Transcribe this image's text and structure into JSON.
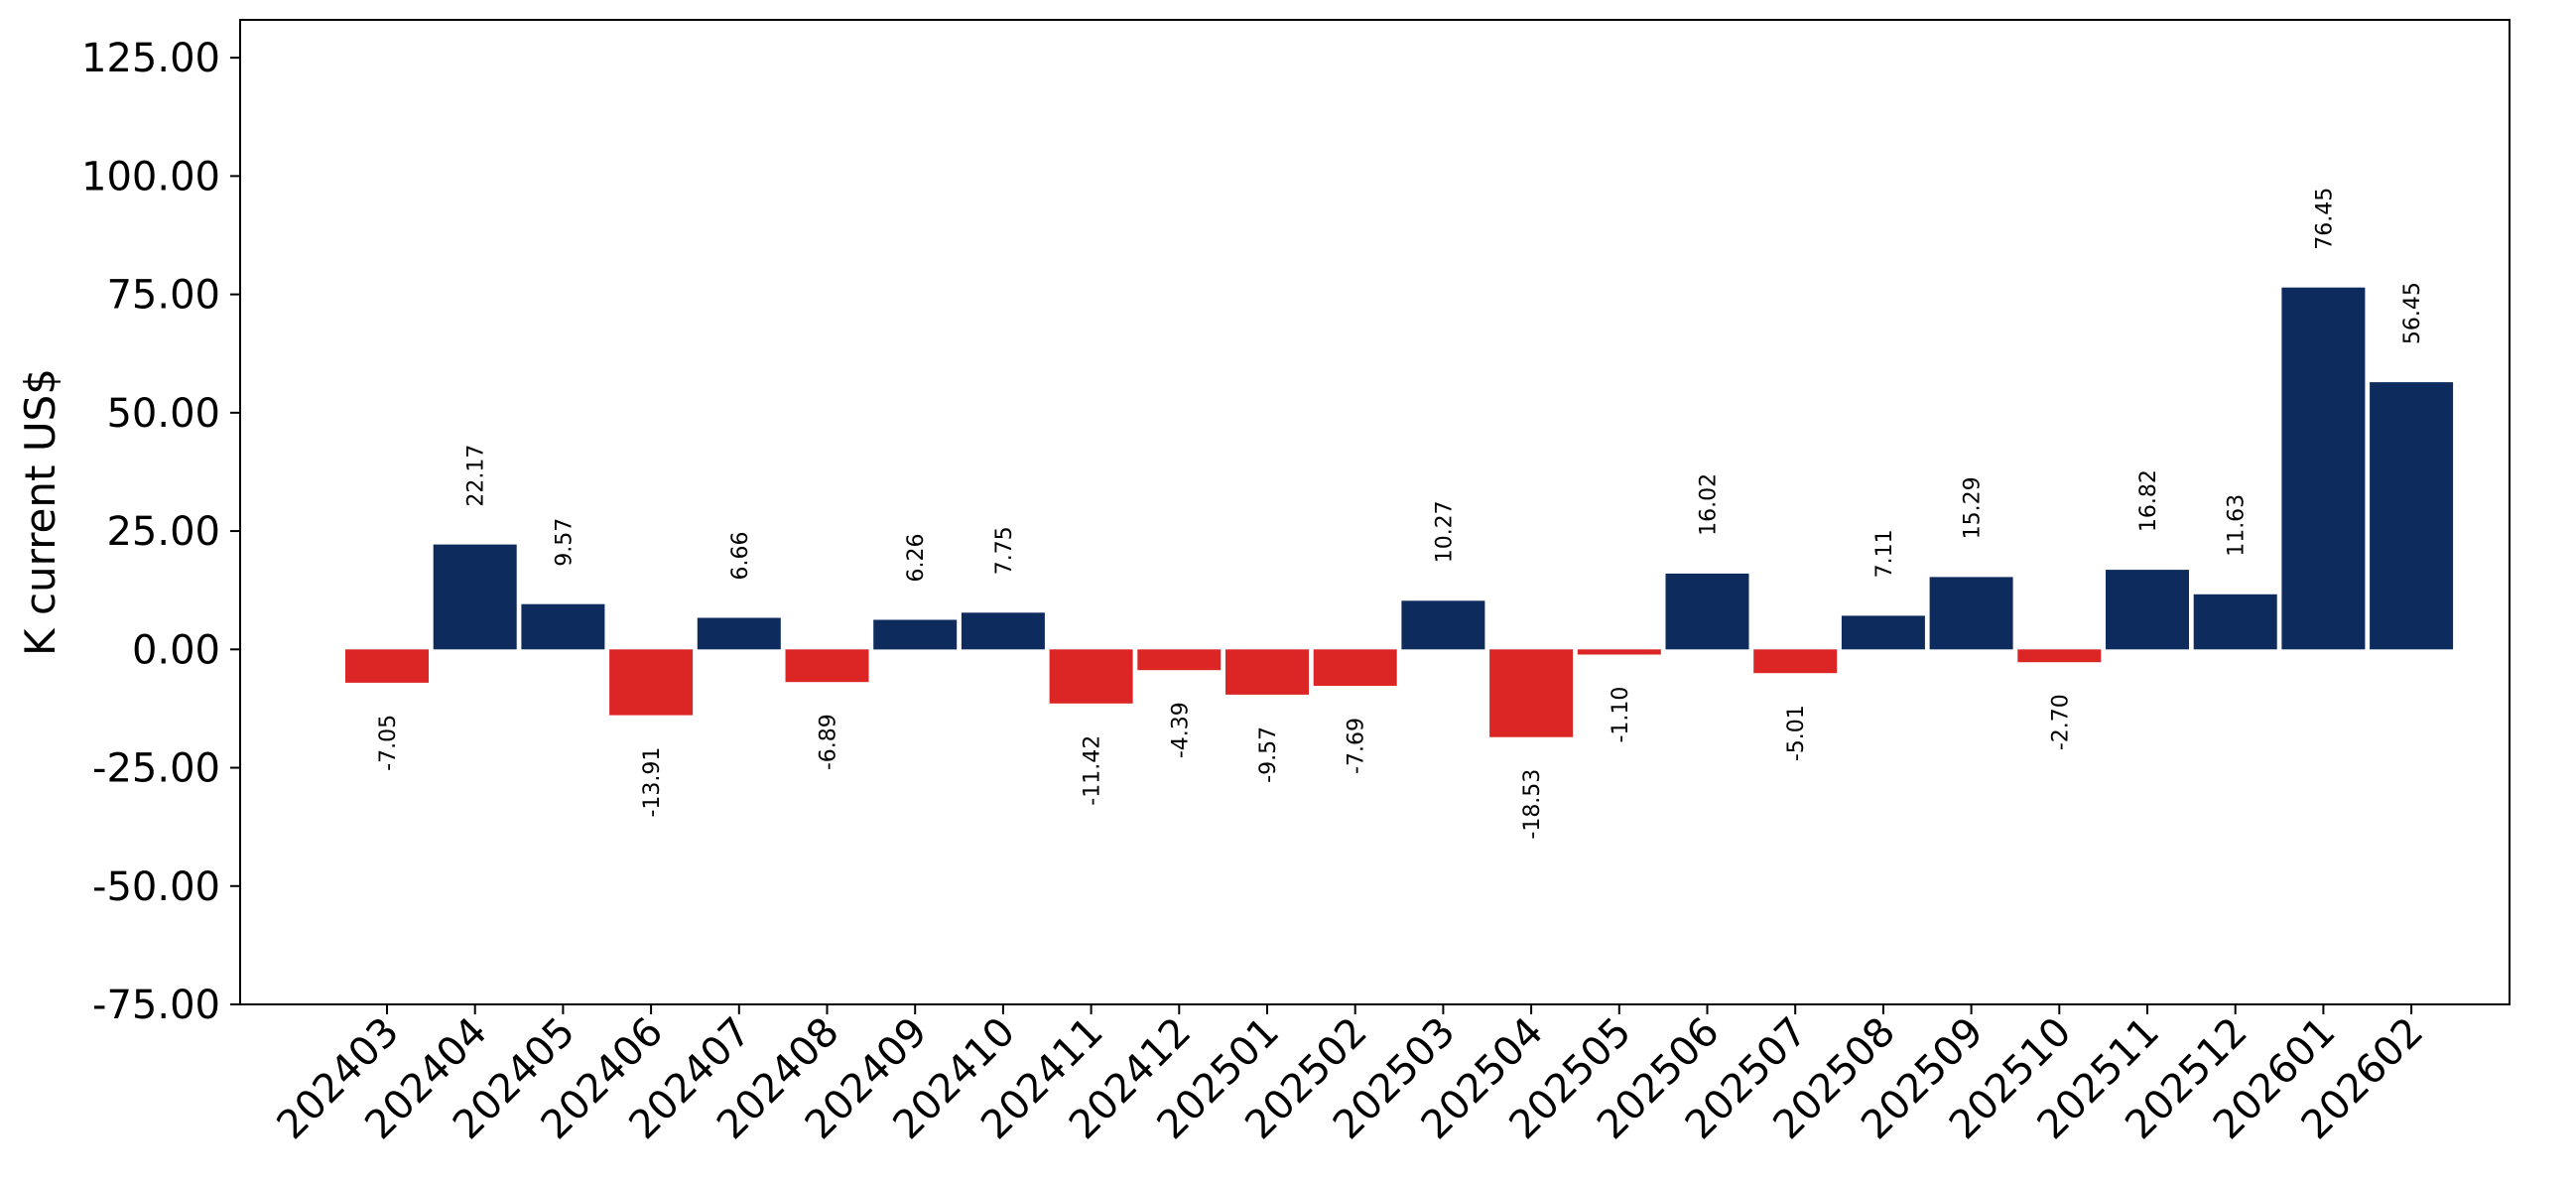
{
  "chart_data": {
    "type": "bar",
    "title": "",
    "xlabel": "",
    "ylabel": "K current US$",
    "ylim": [
      -75,
      133
    ],
    "yticks": [
      "125.00",
      "100.00",
      "75.00",
      "50.00",
      "25.00",
      "0.00",
      "-25.00",
      "-50.00",
      "-75.00"
    ],
    "ytick_values": [
      125,
      100,
      75,
      50,
      25,
      0,
      -25,
      -50,
      -75
    ],
    "grid": false,
    "colors": {
      "positive": "#0d2b5c",
      "negative": "#dc2626"
    },
    "categories": [
      "202403",
      "202404",
      "202405",
      "202406",
      "202407",
      "202408",
      "202409",
      "202410",
      "202411",
      "202412",
      "202501",
      "202502",
      "202503",
      "202504",
      "202505",
      "202506",
      "202507",
      "202508",
      "202509",
      "202510",
      "202511",
      "202512",
      "202601",
      "202602"
    ],
    "values": [
      -7.05,
      22.17,
      9.57,
      -13.91,
      6.66,
      -6.89,
      6.26,
      7.75,
      -11.42,
      -4.39,
      -9.57,
      -7.69,
      10.27,
      -18.53,
      -1.1,
      16.02,
      -5.01,
      7.11,
      15.29,
      -2.7,
      16.82,
      11.63,
      76.45,
      56.45
    ],
    "value_labels": [
      "-7.05",
      "22.17",
      "9.57",
      "-13.91",
      "6.66",
      "-6.89",
      "6.26",
      "7.75",
      "-11.42",
      "-4.39",
      "-9.57",
      "-7.69",
      "10.27",
      "-18.53",
      "-1.10",
      "16.02",
      "-5.01",
      "7.11",
      "15.29",
      "-2.70",
      "16.82",
      "11.63",
      "76.45",
      "56.45"
    ]
  }
}
